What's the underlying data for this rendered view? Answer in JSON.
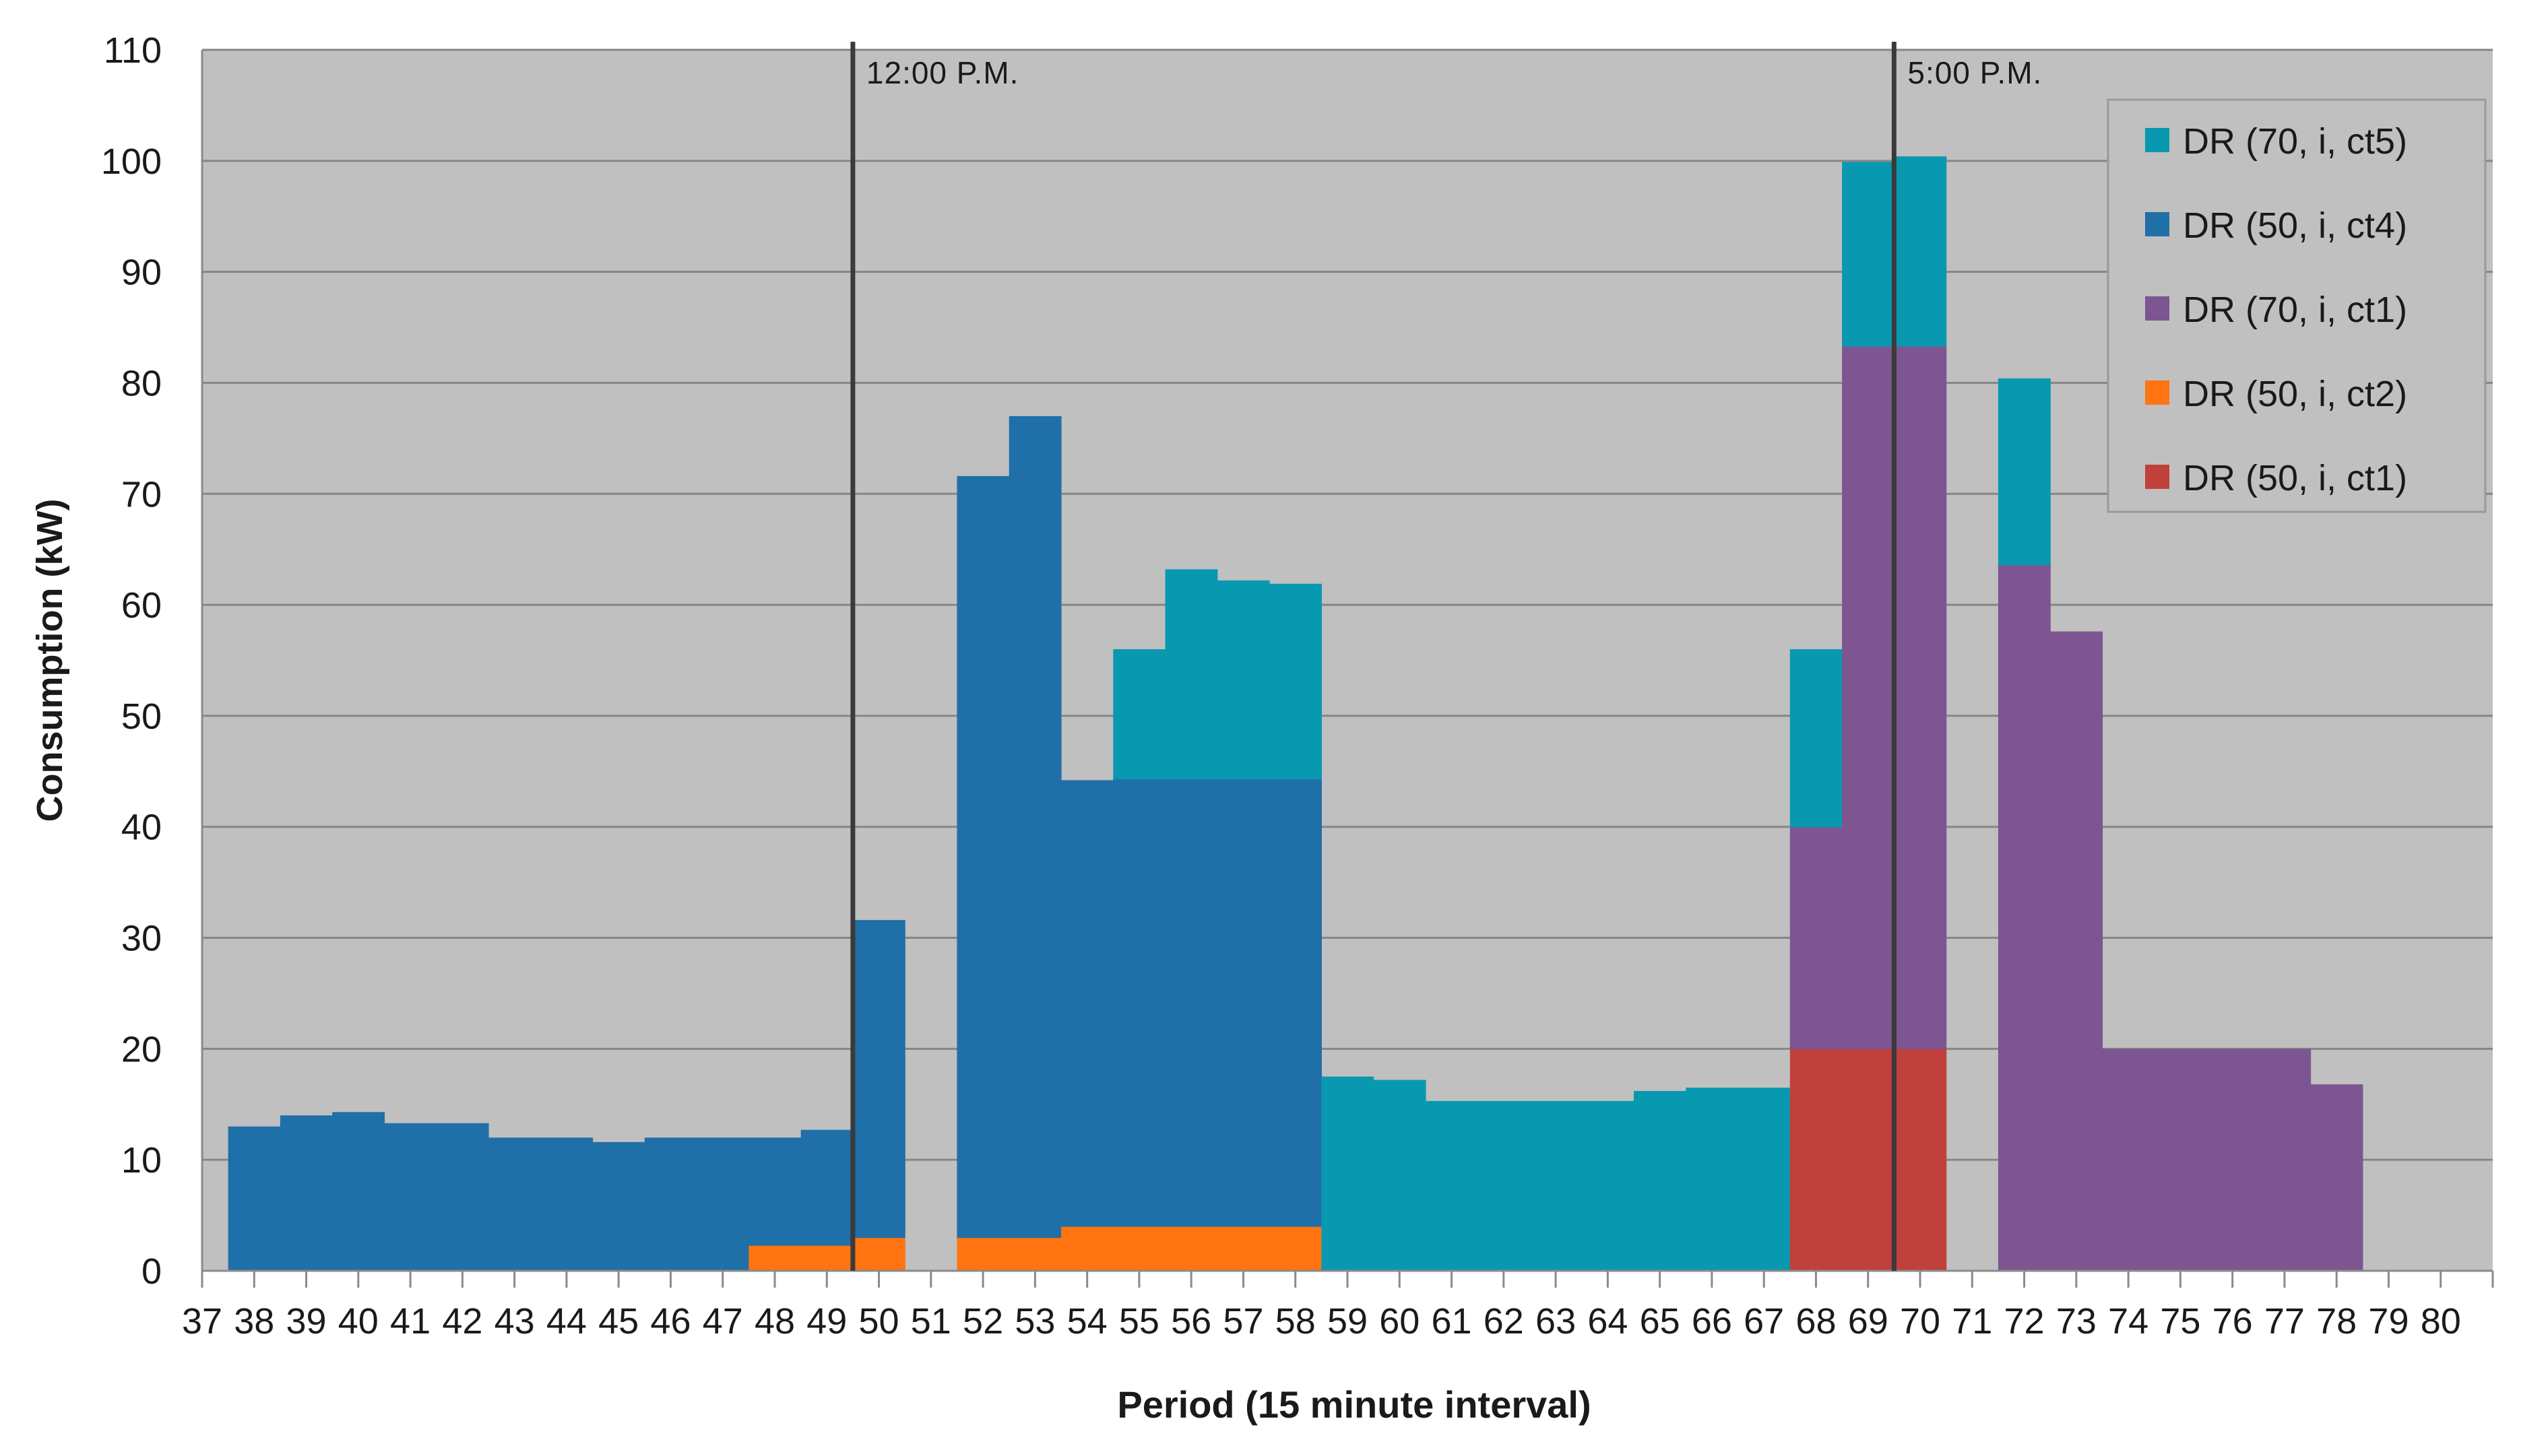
{
  "chart_data": {
    "type": "bar",
    "stacked": true,
    "xlabel": "Period (15 minute interval)",
    "ylabel": "Consumption (kW)",
    "ylim": [
      0,
      110
    ],
    "yticks": [
      0,
      10,
      20,
      30,
      40,
      50,
      60,
      70,
      80,
      90,
      100,
      110
    ],
    "grid": true,
    "legend_position": "top-right",
    "categories": [
      "37",
      "38",
      "39",
      "40",
      "41",
      "42",
      "43",
      "44",
      "45",
      "46",
      "47",
      "48",
      "49",
      "50",
      "51",
      "52",
      "53",
      "54",
      "55",
      "56",
      "57",
      "58",
      "59",
      "60",
      "61",
      "62",
      "63",
      "64",
      "65",
      "66",
      "67",
      "68",
      "69",
      "70",
      "71",
      "72",
      "73",
      "74",
      "75",
      "76",
      "77",
      "78",
      "79",
      "80"
    ],
    "series": [
      {
        "name": "DR (50, i, ct1)",
        "color": "#C0403C",
        "values": [
          0,
          0,
          0,
          0,
          0,
          0,
          0,
          0,
          0,
          0,
          0,
          0,
          0,
          0,
          0,
          0,
          0,
          0,
          0,
          0,
          0,
          0,
          0,
          0,
          0,
          0,
          0,
          0,
          0,
          0,
          20,
          20,
          20,
          0,
          0,
          0,
          0,
          0,
          0,
          0,
          0,
          0,
          0,
          0
        ]
      },
      {
        "name": "DR (50, i, ct2)",
        "color": "#FF7410",
        "values": [
          0,
          0,
          0,
          0,
          0,
          0,
          0,
          0,
          0,
          0,
          2.3,
          2.3,
          3,
          0,
          3,
          3,
          4,
          4,
          4,
          4,
          4,
          0,
          0,
          0,
          0,
          0,
          0,
          0,
          0,
          0,
          0,
          0,
          0,
          0,
          0,
          0,
          0,
          0,
          0,
          0,
          0,
          0,
          0,
          0
        ]
      },
      {
        "name": "DR (70, i, ct1)",
        "color": "#7D5591",
        "values": [
          0,
          0,
          0,
          0,
          0,
          0,
          0,
          0,
          0,
          0,
          0,
          0,
          0,
          0,
          0,
          0,
          0,
          0,
          0,
          0,
          0,
          0,
          0,
          0,
          0,
          0,
          0,
          0,
          0,
          0,
          20,
          63.3,
          63.3,
          0,
          63.6,
          57.6,
          20,
          20,
          20,
          20,
          16.8,
          0,
          0,
          0
        ]
      },
      {
        "name": "DR (50, i, ct4)",
        "color": "#1F6FA8",
        "values": [
          13,
          14,
          14.3,
          13.3,
          13.3,
          12,
          12,
          11.6,
          12,
          12,
          9.7,
          10.4,
          28.6,
          0,
          68.6,
          74,
          40.2,
          40.3,
          40.3,
          40.3,
          40.3,
          0,
          0,
          0,
          0,
          0,
          0,
          0,
          0,
          0,
          0,
          0,
          0,
          0,
          0,
          0,
          0,
          0,
          0,
          0,
          0,
          0,
          0,
          0
        ]
      },
      {
        "name": "DR (70, i, ct5)",
        "color": "#0898B0",
        "values": [
          0,
          0,
          0,
          0,
          0,
          0,
          0,
          0,
          0,
          0,
          0,
          0,
          0,
          0,
          0,
          0,
          0,
          11.7,
          18.9,
          17.9,
          17.6,
          17.5,
          17.2,
          15.3,
          15.3,
          15.3,
          15.3,
          16.2,
          16.5,
          16.5,
          16,
          16.6,
          17.1,
          0,
          16.8,
          0,
          0,
          0,
          0,
          0,
          0,
          0,
          0,
          0
        ]
      }
    ],
    "legend_order": [
      "DR (70, i, ct5)",
      "DR (50, i, ct4)",
      "DR (70, i, ct1)",
      "DR (50, i, ct2)",
      "DR (50, i, ct1)"
    ],
    "annotations": [
      {
        "label": "12:00 P.M.",
        "after_category": "48"
      },
      {
        "label": "5:00 P.M.",
        "after_category": "68"
      }
    ],
    "colors": {
      "plot_background": "#C0C0C0",
      "gridline": "#868686",
      "marker_line": "#3A3A3A"
    }
  }
}
